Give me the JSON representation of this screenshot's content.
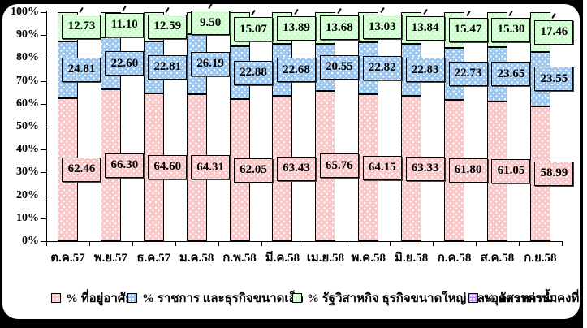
{
  "chart_data": {
    "type": "bar",
    "stacked": true,
    "percent_stacked": true,
    "title": "",
    "xlabel": "",
    "ylabel": "",
    "ylim": [
      0,
      100
    ],
    "yticks": [
      "0%",
      "10%",
      "20%",
      "30%",
      "40%",
      "50%",
      "60%",
      "70%",
      "80%",
      "90%",
      "100%"
    ],
    "grid": false,
    "legend_position": "bottom",
    "value_labels": "boxed, two decimals, shown on every segment",
    "categories": [
      "ต.ค.57",
      "พ.ย.57",
      "ธ.ค.57",
      "ม.ค.58",
      "ก.พ.58",
      "มี.ค.58",
      "เม.ย.58",
      "พ.ค.58",
      "มิ.ย.58",
      "ก.ค.58",
      "ส.ค.58",
      "ก.ย.58"
    ],
    "series": [
      {
        "name": "% ที่อยู่อาศัย",
        "color": "#FAC8C8",
        "values": [
          62.46,
          66.3,
          64.6,
          64.31,
          62.05,
          63.43,
          65.76,
          64.15,
          63.33,
          61.8,
          61.05,
          58.99
        ]
      },
      {
        "name": "% ราชการ และธุรกิจขนาดเล็ก",
        "color": "#9CC7F0",
        "values": [
          24.81,
          22.6,
          22.81,
          26.19,
          22.88,
          22.68,
          20.55,
          22.82,
          22.83,
          22.73,
          23.65,
          23.55
        ]
      },
      {
        "name": "% รัฐวิสาหกิจ ธุรกิจขนาดใหญ่ และอุตสาหกรรม",
        "color": "#CCFFCC",
        "values": [
          12.73,
          11.1,
          12.59,
          9.5,
          15.07,
          13.89,
          13.68,
          13.03,
          13.84,
          15.47,
          15.3,
          17.46
        ]
      },
      {
        "name": "% อัตราค่าน้ำคงที่",
        "color": "#CC99FF",
        "values": []
      }
    ]
  }
}
